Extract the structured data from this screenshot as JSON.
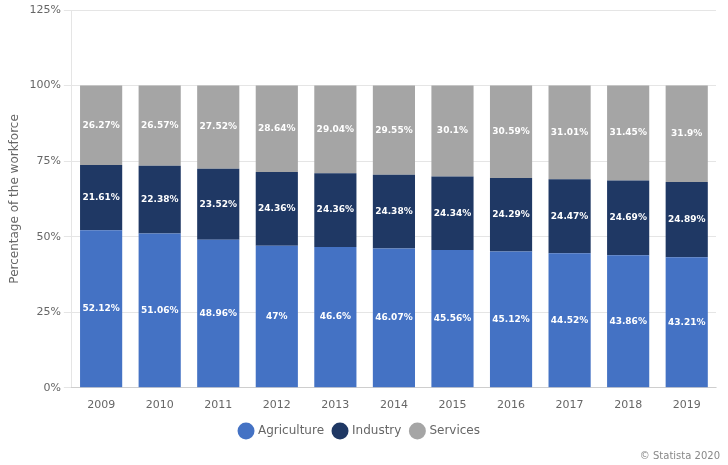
{
  "chart_data": {
    "type": "bar",
    "y_label": "Percentage of the workforce",
    "categories": [
      "2009",
      "2010",
      "2011",
      "2012",
      "2013",
      "2014",
      "2015",
      "2016",
      "2017",
      "2018",
      "2019"
    ],
    "series": [
      {
        "name": "Agriculture",
        "color": "#4472c4",
        "values": [
          52.12,
          51.06,
          48.96,
          47.0,
          46.6,
          46.07,
          45.56,
          45.12,
          44.52,
          43.86,
          43.21
        ],
        "value_labels": [
          "52.12%",
          "51.06%",
          "48.96%",
          "47%",
          "46.6%",
          "46.07%",
          "45.56%",
          "45.12%",
          "44.52%",
          "43.86%",
          "43.21%"
        ]
      },
      {
        "name": "Industry",
        "color": "#1f3864",
        "values": [
          21.61,
          22.38,
          23.52,
          24.36,
          24.36,
          24.38,
          24.34,
          24.29,
          24.47,
          24.69,
          24.89
        ],
        "value_labels": [
          "21.61%",
          "22.38%",
          "23.52%",
          "24.36%",
          "24.36%",
          "24.38%",
          "24.34%",
          "24.29%",
          "24.47%",
          "24.69%",
          "24.89%"
        ]
      },
      {
        "name": "Services",
        "color": "#a5a5a5",
        "values": [
          26.27,
          26.57,
          27.52,
          28.64,
          29.04,
          29.55,
          30.1,
          30.59,
          31.01,
          31.45,
          31.9
        ],
        "value_labels": [
          "26.27%",
          "26.57%",
          "27.52%",
          "28.64%",
          "29.04%",
          "29.55%",
          "30.1%",
          "30.59%",
          "31.01%",
          "31.45%",
          "31.9%"
        ]
      }
    ],
    "stacked": true,
    "data_labels": true,
    "ylim": [
      0,
      125
    ],
    "yticks": [
      {
        "value": 0,
        "label": "0%"
      },
      {
        "value": 25,
        "label": "25%"
      },
      {
        "value": 50,
        "label": "50%"
      },
      {
        "value": 75,
        "label": "75%"
      },
      {
        "value": 100,
        "label": "100%"
      },
      {
        "value": 125,
        "label": "125%"
      }
    ],
    "grid": true,
    "legend": "bottom",
    "annotations": [
      "© Statista 2020"
    ]
  }
}
